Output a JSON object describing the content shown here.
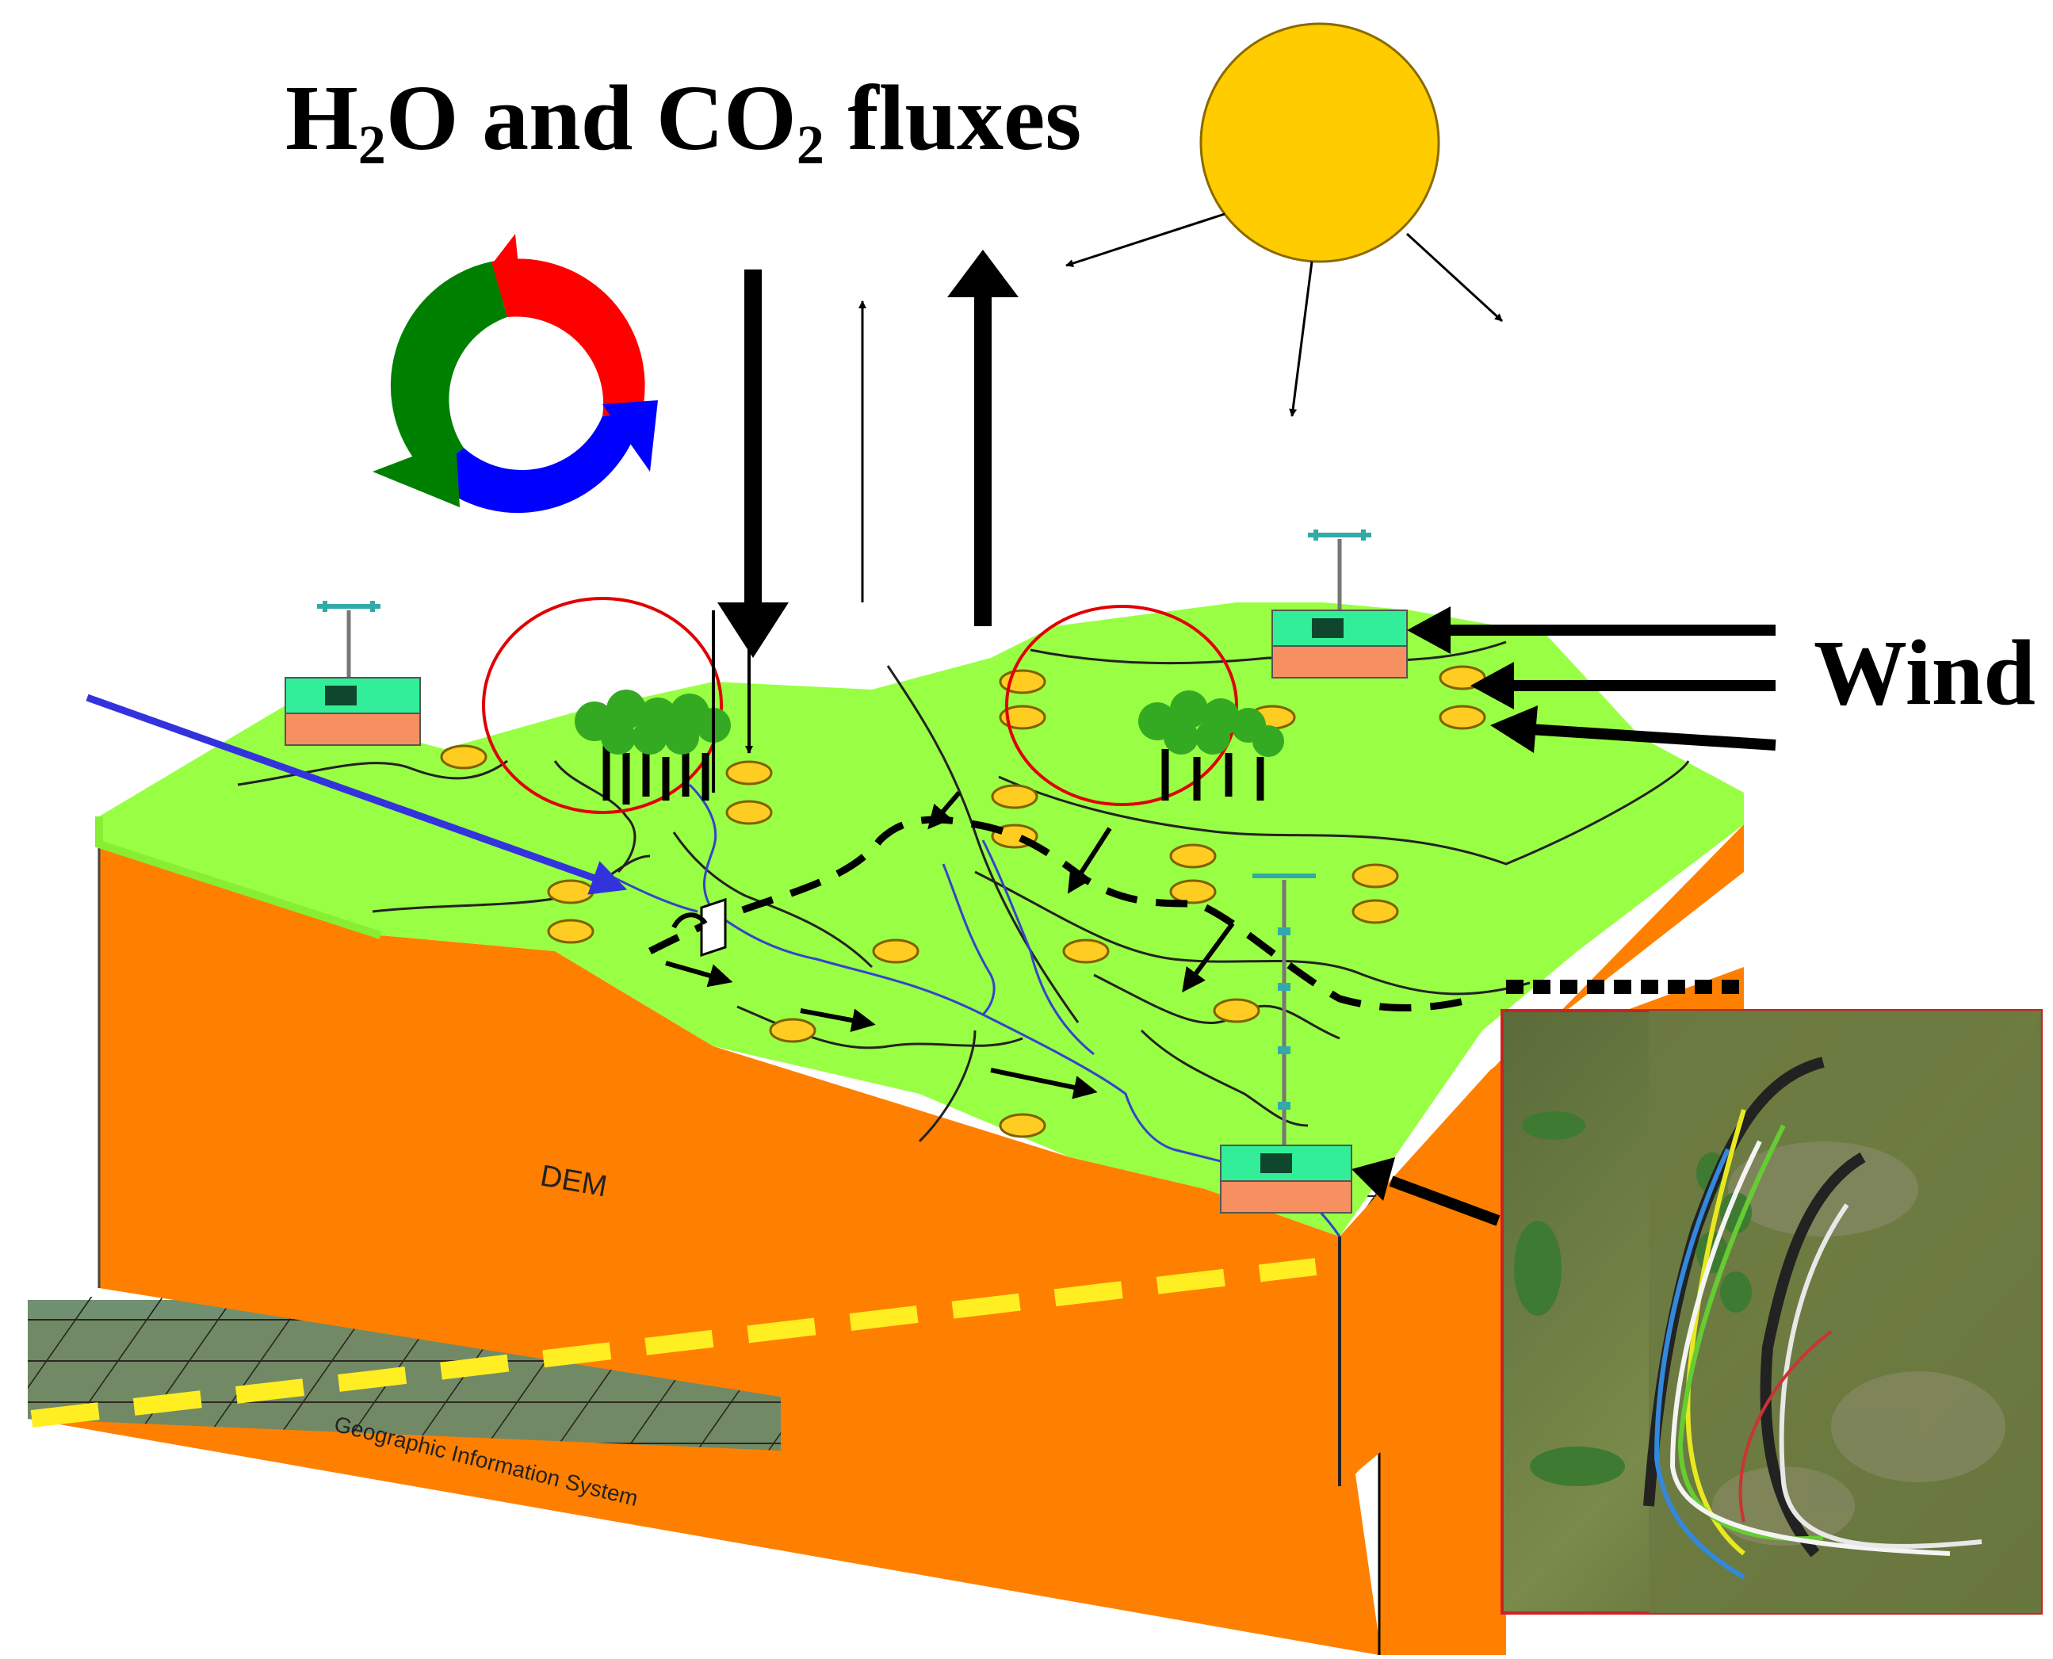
{
  "title": {
    "h2o": "H",
    "h2o_sub": "2",
    "mid": "O and CO",
    "co2_sub": "2",
    "end": " fluxes"
  },
  "labels": {
    "wind": "Wind",
    "dem": "DEM",
    "gis": "Geographic Information System"
  },
  "colors": {
    "terrain_top": "#99ff44",
    "terrain_side": "#ff8000",
    "sun": "#ffcc00",
    "cycle_red": "#ff0000",
    "cycle_green": "#008000",
    "cycle_blue": "#0000ff",
    "highlight_circle": "#e00000",
    "dashed_line": "#ffee22",
    "station_base": "#33ee99",
    "station_soil": "#f79060",
    "photo_border": "#cc2222"
  }
}
